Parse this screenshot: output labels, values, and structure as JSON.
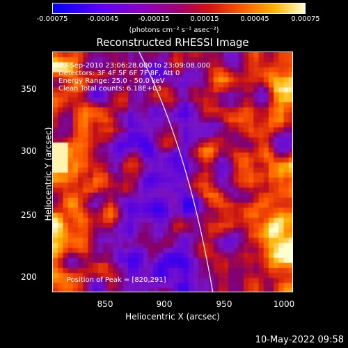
{
  "colorbar": {
    "ticks": [
      "-0.00075",
      "-0.00045",
      "-0.00015",
      "0.00015",
      "0.00045",
      "0.00075"
    ],
    "units": "(photons cm⁻² s⁻¹ asec⁻²)"
  },
  "title": "Reconstructed RHESSI Image",
  "info": {
    "line1": "29-Sep-2010 23:06:28.000 to 23:09:08.000",
    "line2": "Detectors: 3F 4F 5F 6F 7F 8F, Att 0",
    "line3": "Energy Range: 25.0 - 50.0 keV",
    "line4": "Clean    Total counts: 6.18E+03",
    "peak": "Position of Peak = [820,291]"
  },
  "axes": {
    "xlabel": "Heliocentric X (arcsec)",
    "ylabel": "Heliocentric Y (arcsec)",
    "xticks": [
      "850",
      "900",
      "950",
      "1000"
    ],
    "yticks": [
      "350",
      "300",
      "250",
      "200"
    ]
  },
  "timestamp": "10-May-2022 09:58"
}
